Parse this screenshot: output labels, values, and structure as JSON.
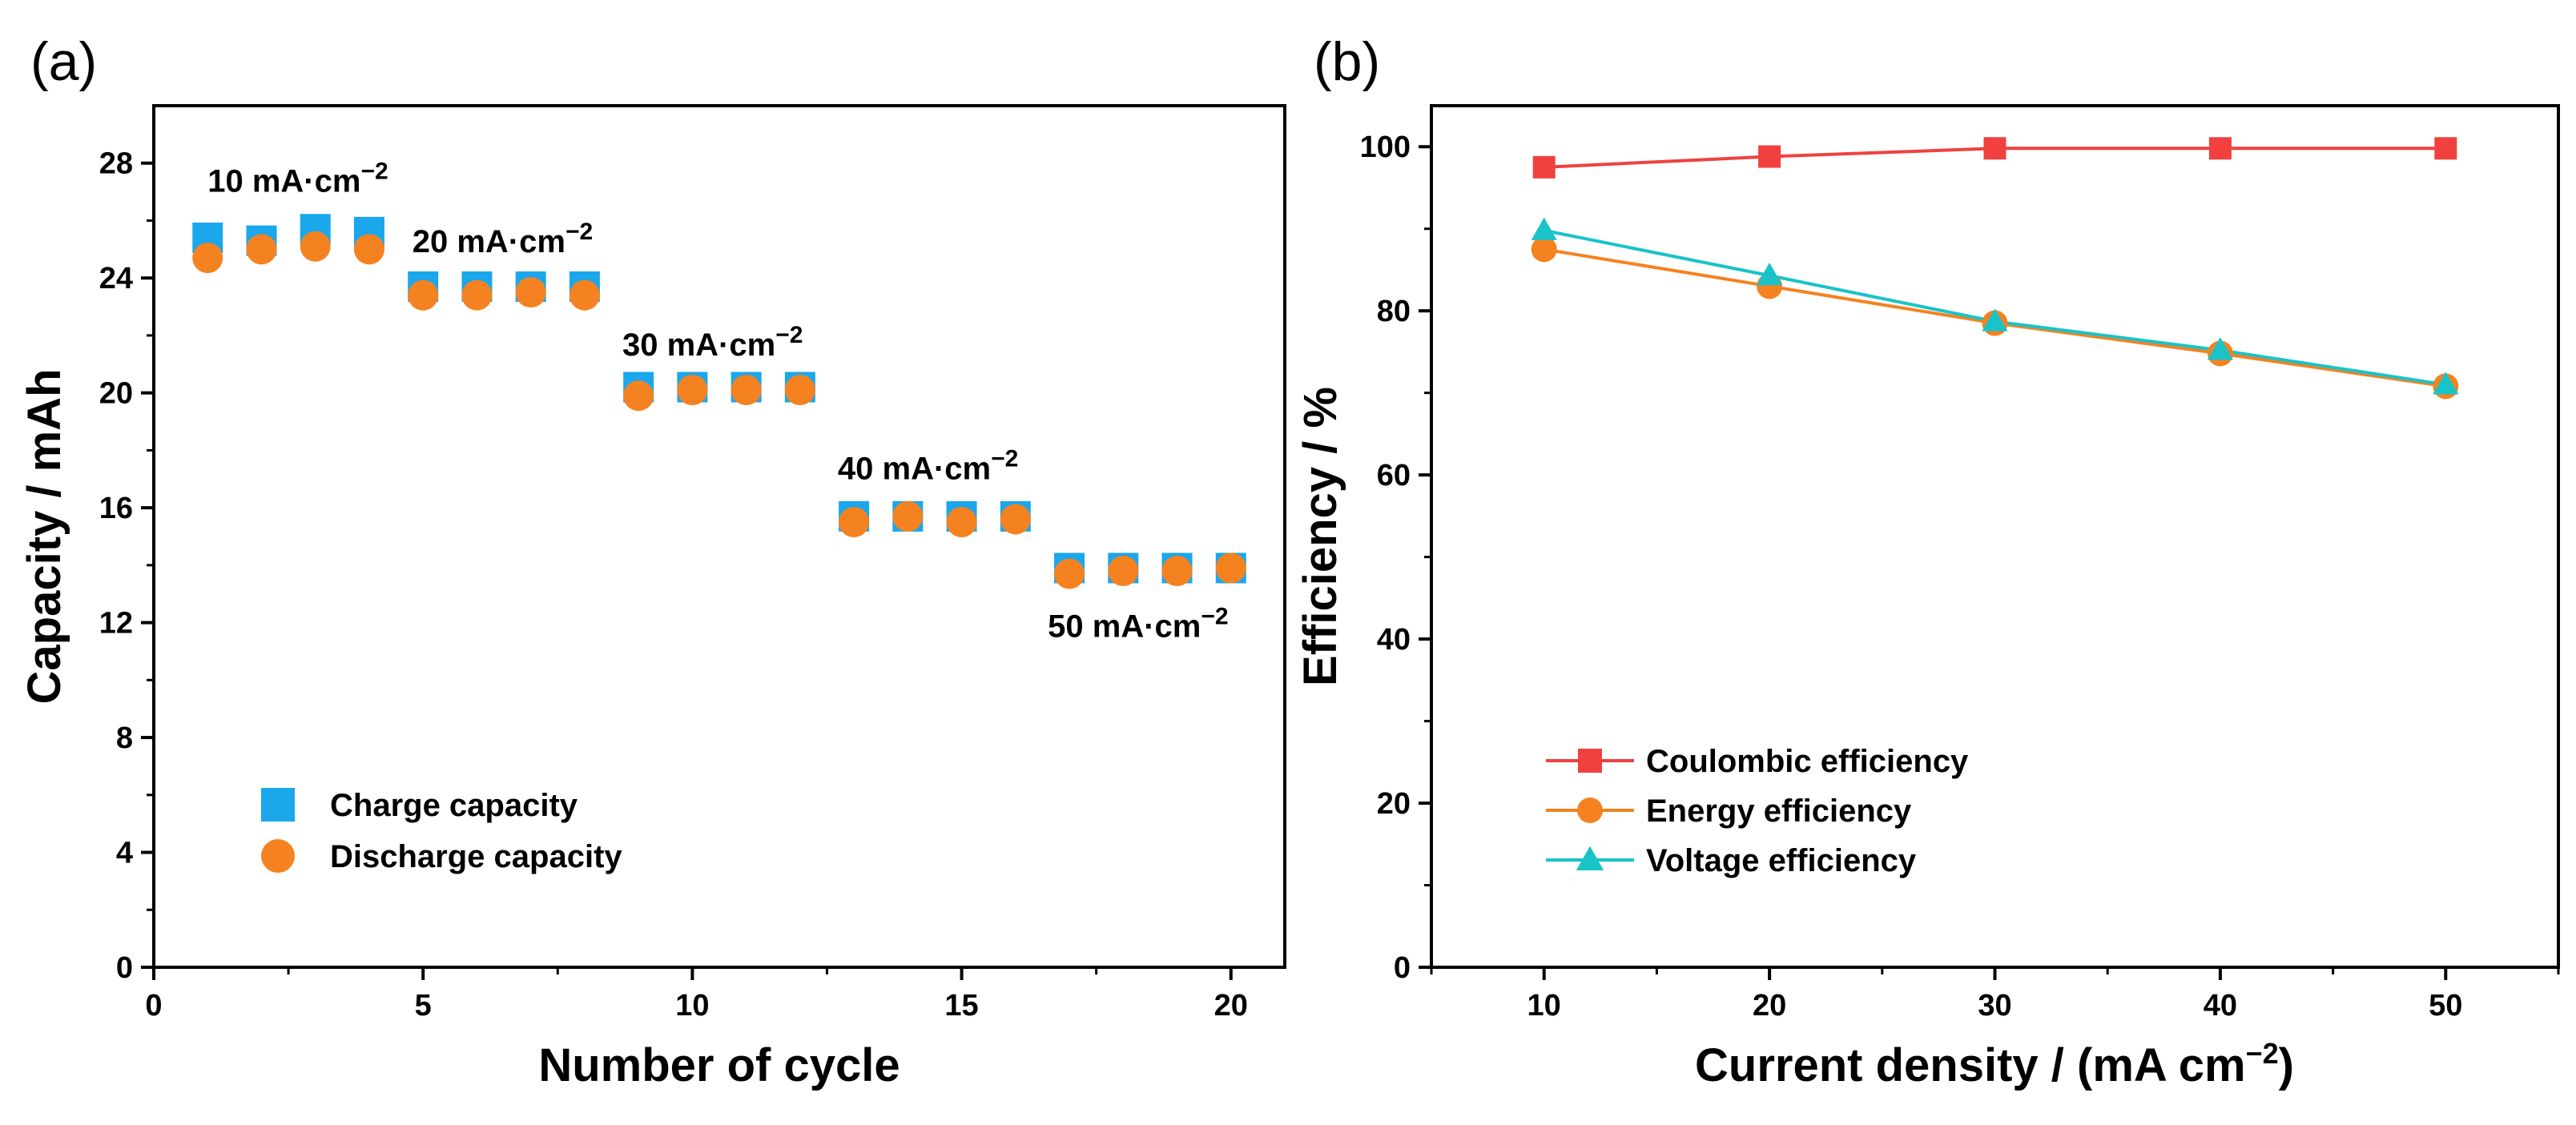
{
  "colors": {
    "charge": "#1aa7ec",
    "discharge": "#f58220",
    "coulombic": "#f0413f",
    "energy": "#f58220",
    "voltage": "#19c3c8",
    "axis": "#000000"
  },
  "panels": {
    "a": {
      "label": "(a)"
    },
    "b": {
      "label": "(b)"
    }
  },
  "chart_data": [
    {
      "id": "a",
      "type": "scatter",
      "title": "",
      "xlabel": "Number of cycle",
      "ylabel": "Capacity / mAh",
      "xlim": [
        0,
        21
      ],
      "ylim": [
        0,
        30
      ],
      "xticks": [
        0,
        5,
        10,
        15,
        20
      ],
      "yticks": [
        0,
        4,
        8,
        12,
        16,
        20,
        24,
        28
      ],
      "legend_position": "bottom-left",
      "series": [
        {
          "name": "Charge capacity",
          "marker": "square",
          "color_key": "charge",
          "x": [
            1,
            2,
            3,
            4,
            5,
            6,
            7,
            8,
            9,
            10,
            11,
            12,
            13,
            14,
            15,
            16,
            17,
            18,
            19,
            20
          ],
          "y": [
            25.4,
            25.3,
            25.7,
            25.6,
            23.7,
            23.7,
            23.7,
            23.7,
            20.2,
            20.2,
            20.2,
            20.2,
            15.7,
            15.7,
            15.7,
            15.7,
            13.9,
            13.9,
            13.9,
            13.9
          ]
        },
        {
          "name": "Discharge capacity",
          "marker": "circle",
          "color_key": "discharge",
          "x": [
            1,
            2,
            3,
            4,
            5,
            6,
            7,
            8,
            9,
            10,
            11,
            12,
            13,
            14,
            15,
            16,
            17,
            18,
            19,
            20
          ],
          "y": [
            24.7,
            25.0,
            25.1,
            25.0,
            23.4,
            23.4,
            23.5,
            23.4,
            19.9,
            20.1,
            20.1,
            20.1,
            15.5,
            15.7,
            15.5,
            15.6,
            13.7,
            13.8,
            13.8,
            13.9
          ]
        }
      ],
      "annotations": [
        {
          "id": "anno-10",
          "prefix": "10 mA·cm",
          "sup": "−2",
          "at": [
            1,
            27.0
          ]
        },
        {
          "id": "anno-20",
          "prefix": "20 mA·cm",
          "sup": "−2",
          "at": [
            4.8,
            24.9
          ]
        },
        {
          "id": "anno-30",
          "prefix": "30 mA·cm",
          "sup": "−2",
          "at": [
            8.7,
            21.3
          ]
        },
        {
          "id": "anno-40",
          "prefix": "40 mA·cm",
          "sup": "−2",
          "at": [
            12.7,
            17.0
          ]
        },
        {
          "id": "anno-50",
          "prefix": "50 mA·cm",
          "sup": "−2",
          "at": [
            16.6,
            11.5
          ]
        }
      ]
    },
    {
      "id": "b",
      "type": "line",
      "title": "",
      "xlabel_prefix": "Current density / (mA cm",
      "xlabel_sup": "−2",
      "xlabel_suffix": ")",
      "ylabel": "Efficiency / %",
      "xlim": [
        5,
        55
      ],
      "ylim": [
        0,
        105
      ],
      "xticks": [
        10,
        20,
        30,
        40,
        50
      ],
      "yticks": [
        0,
        20,
        40,
        60,
        80,
        100
      ],
      "legend_position": "bottom-left",
      "x": [
        10,
        20,
        30,
        40,
        50
      ],
      "series": [
        {
          "name": "Coulombic efficiency",
          "marker": "square",
          "color_key": "coulombic",
          "values": [
            97.5,
            98.8,
            99.8,
            99.8,
            99.8
          ]
        },
        {
          "name": "Energy efficiency",
          "marker": "circle",
          "color_key": "energy",
          "values": [
            87.5,
            83.0,
            78.5,
            74.8,
            70.8
          ]
        },
        {
          "name": "Voltage efficiency",
          "marker": "triangle",
          "color_key": "voltage",
          "values": [
            89.8,
            84.3,
            78.7,
            75.2,
            71.0
          ]
        }
      ]
    }
  ]
}
